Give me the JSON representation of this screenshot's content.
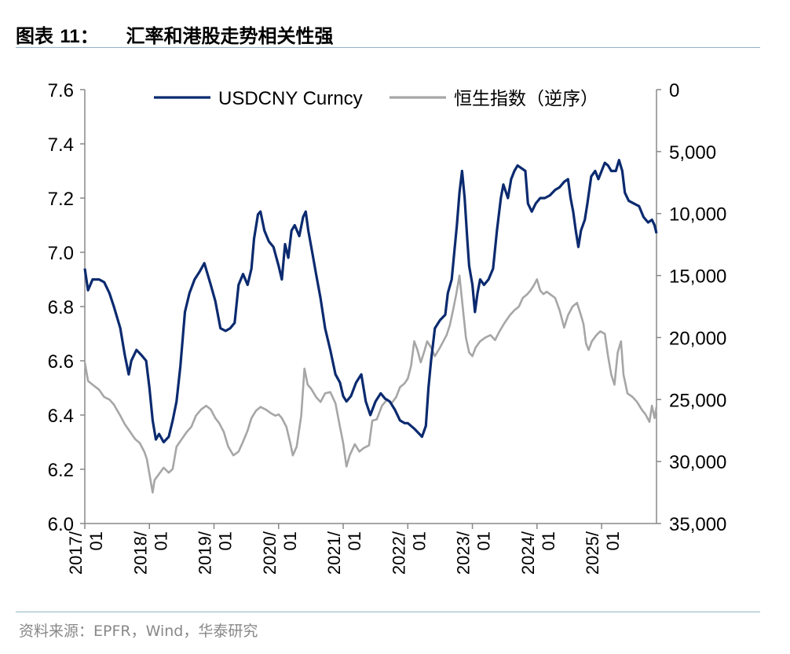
{
  "header": {
    "label": "图表",
    "number": "11",
    "separator": "：",
    "title": "汇率和港股走势相关性强"
  },
  "source": "资料来源：EPFR，Wind，华泰研究",
  "colors": {
    "usdcny": "#0b2a6f",
    "hsi": "#a6a6a6",
    "axis": "#888888",
    "rule": "#8fb3c9"
  },
  "chart_data": {
    "type": "line",
    "title": "汇率和港股走势相关性强",
    "x_tick_labels": [
      "2017/\n01",
      "2018/\n01",
      "2019/\n01",
      "2020/\n01",
      "2021/\n01",
      "2022/\n01",
      "2023/\n01",
      "2024/\n01",
      "2025/\n01"
    ],
    "x_range": [
      2017.0,
      2025.85
    ],
    "left_axis": {
      "range": [
        6.0,
        7.6
      ],
      "ticks": [
        "6.0",
        "6.2",
        "6.4",
        "6.6",
        "6.8",
        "7.0",
        "7.2",
        "7.4",
        "7.6"
      ]
    },
    "right_axis": {
      "range": [
        35000,
        0
      ],
      "inverted": true,
      "ticks": [
        "0",
        "5,000",
        "10,000",
        "15,000",
        "20,000",
        "25,000",
        "30,000",
        "35,000"
      ]
    },
    "legend_position": "top",
    "series": [
      {
        "name": "USDCNY Curncy",
        "axis": "left",
        "points": [
          [
            2017.0,
            6.94
          ],
          [
            2017.05,
            6.86
          ],
          [
            2017.12,
            6.9
          ],
          [
            2017.22,
            6.9
          ],
          [
            2017.3,
            6.89
          ],
          [
            2017.38,
            6.85
          ],
          [
            2017.45,
            6.8
          ],
          [
            2017.55,
            6.72
          ],
          [
            2017.62,
            6.62
          ],
          [
            2017.68,
            6.55
          ],
          [
            2017.72,
            6.6
          ],
          [
            2017.8,
            6.64
          ],
          [
            2017.88,
            6.62
          ],
          [
            2017.95,
            6.6
          ],
          [
            2018.0,
            6.5
          ],
          [
            2018.05,
            6.38
          ],
          [
            2018.1,
            6.31
          ],
          [
            2018.15,
            6.33
          ],
          [
            2018.22,
            6.3
          ],
          [
            2018.3,
            6.32
          ],
          [
            2018.36,
            6.38
          ],
          [
            2018.42,
            6.45
          ],
          [
            2018.48,
            6.58
          ],
          [
            2018.55,
            6.78
          ],
          [
            2018.62,
            6.85
          ],
          [
            2018.7,
            6.9
          ],
          [
            2018.78,
            6.93
          ],
          [
            2018.85,
            6.96
          ],
          [
            2018.95,
            6.88
          ],
          [
            2019.02,
            6.82
          ],
          [
            2019.1,
            6.72
          ],
          [
            2019.18,
            6.71
          ],
          [
            2019.25,
            6.72
          ],
          [
            2019.32,
            6.74
          ],
          [
            2019.38,
            6.88
          ],
          [
            2019.45,
            6.92
          ],
          [
            2019.52,
            6.88
          ],
          [
            2019.58,
            6.94
          ],
          [
            2019.62,
            7.05
          ],
          [
            2019.68,
            7.14
          ],
          [
            2019.72,
            7.15
          ],
          [
            2019.78,
            7.08
          ],
          [
            2019.85,
            7.04
          ],
          [
            2019.92,
            7.02
          ],
          [
            2020.0,
            6.95
          ],
          [
            2020.05,
            6.9
          ],
          [
            2020.1,
            7.03
          ],
          [
            2020.15,
            6.98
          ],
          [
            2020.2,
            7.08
          ],
          [
            2020.25,
            7.1
          ],
          [
            2020.32,
            7.06
          ],
          [
            2020.38,
            7.13
          ],
          [
            2020.42,
            7.15
          ],
          [
            2020.46,
            7.08
          ],
          [
            2020.52,
            7.0
          ],
          [
            2020.58,
            6.92
          ],
          [
            2020.65,
            6.83
          ],
          [
            2020.72,
            6.72
          ],
          [
            2020.8,
            6.64
          ],
          [
            2020.88,
            6.55
          ],
          [
            2020.95,
            6.52
          ],
          [
            2021.0,
            6.47
          ],
          [
            2021.05,
            6.45
          ],
          [
            2021.12,
            6.47
          ],
          [
            2021.2,
            6.52
          ],
          [
            2021.28,
            6.55
          ],
          [
            2021.35,
            6.45
          ],
          [
            2021.42,
            6.4
          ],
          [
            2021.5,
            6.45
          ],
          [
            2021.58,
            6.48
          ],
          [
            2021.65,
            6.46
          ],
          [
            2021.72,
            6.45
          ],
          [
            2021.8,
            6.42
          ],
          [
            2021.88,
            6.38
          ],
          [
            2021.95,
            6.37
          ],
          [
            2022.0,
            6.37
          ],
          [
            2022.1,
            6.35
          ],
          [
            2022.18,
            6.33
          ],
          [
            2022.22,
            6.32
          ],
          [
            2022.28,
            6.36
          ],
          [
            2022.32,
            6.5
          ],
          [
            2022.36,
            6.6
          ],
          [
            2022.42,
            6.72
          ],
          [
            2022.5,
            6.75
          ],
          [
            2022.58,
            6.77
          ],
          [
            2022.62,
            6.85
          ],
          [
            2022.68,
            6.9
          ],
          [
            2022.72,
            7.0
          ],
          [
            2022.76,
            7.1
          ],
          [
            2022.8,
            7.22
          ],
          [
            2022.84,
            7.3
          ],
          [
            2022.88,
            7.2
          ],
          [
            2022.92,
            7.05
          ],
          [
            2022.95,
            6.95
          ],
          [
            2023.0,
            6.88
          ],
          [
            2023.04,
            6.78
          ],
          [
            2023.08,
            6.85
          ],
          [
            2023.12,
            6.9
          ],
          [
            2023.18,
            6.88
          ],
          [
            2023.25,
            6.9
          ],
          [
            2023.32,
            6.94
          ],
          [
            2023.38,
            7.08
          ],
          [
            2023.44,
            7.2
          ],
          [
            2023.48,
            7.25
          ],
          [
            2023.55,
            7.2
          ],
          [
            2023.6,
            7.27
          ],
          [
            2023.65,
            7.3
          ],
          [
            2023.7,
            7.32
          ],
          [
            2023.76,
            7.31
          ],
          [
            2023.82,
            7.3
          ],
          [
            2023.86,
            7.18
          ],
          [
            2023.92,
            7.15
          ],
          [
            2023.98,
            7.18
          ],
          [
            2024.05,
            7.2
          ],
          [
            2024.12,
            7.2
          ],
          [
            2024.2,
            7.21
          ],
          [
            2024.28,
            7.23
          ],
          [
            2024.35,
            7.24
          ],
          [
            2024.42,
            7.26
          ],
          [
            2024.48,
            7.27
          ],
          [
            2024.52,
            7.2
          ],
          [
            2024.56,
            7.15
          ],
          [
            2024.6,
            7.08
          ],
          [
            2024.64,
            7.02
          ],
          [
            2024.68,
            7.08
          ],
          [
            2024.74,
            7.12
          ],
          [
            2024.78,
            7.18
          ],
          [
            2024.84,
            7.28
          ],
          [
            2024.9,
            7.3
          ],
          [
            2024.95,
            7.27
          ],
          [
            2025.0,
            7.3
          ],
          [
            2025.05,
            7.33
          ],
          [
            2025.1,
            7.32
          ],
          [
            2025.15,
            7.3
          ],
          [
            2025.22,
            7.3
          ],
          [
            2025.27,
            7.34
          ],
          [
            2025.32,
            7.3
          ],
          [
            2025.36,
            7.22
          ],
          [
            2025.42,
            7.19
          ],
          [
            2025.5,
            7.18
          ],
          [
            2025.58,
            7.17
          ],
          [
            2025.65,
            7.13
          ],
          [
            2025.72,
            7.11
          ],
          [
            2025.78,
            7.12
          ],
          [
            2025.82,
            7.1
          ],
          [
            2025.85,
            7.07
          ]
        ]
      },
      {
        "name": "恒生指数（逆序）",
        "axis": "right",
        "points": [
          [
            2017.0,
            22000
          ],
          [
            2017.05,
            23500
          ],
          [
            2017.12,
            23800
          ],
          [
            2017.22,
            24200
          ],
          [
            2017.3,
            24800
          ],
          [
            2017.38,
            25000
          ],
          [
            2017.45,
            25400
          ],
          [
            2017.55,
            26300
          ],
          [
            2017.62,
            27000
          ],
          [
            2017.7,
            27600
          ],
          [
            2017.78,
            28200
          ],
          [
            2017.85,
            28500
          ],
          [
            2017.92,
            29200
          ],
          [
            2017.96,
            29800
          ],
          [
            2018.0,
            31000
          ],
          [
            2018.05,
            32500
          ],
          [
            2018.08,
            31500
          ],
          [
            2018.15,
            31000
          ],
          [
            2018.22,
            30500
          ],
          [
            2018.3,
            30900
          ],
          [
            2018.36,
            30600
          ],
          [
            2018.42,
            28800
          ],
          [
            2018.5,
            28200
          ],
          [
            2018.58,
            27600
          ],
          [
            2018.65,
            27200
          ],
          [
            2018.72,
            26300
          ],
          [
            2018.8,
            25800
          ],
          [
            2018.88,
            25500
          ],
          [
            2018.95,
            25800
          ],
          [
            2019.02,
            26500
          ],
          [
            2019.08,
            26900
          ],
          [
            2019.15,
            27600
          ],
          [
            2019.22,
            28800
          ],
          [
            2019.3,
            29500
          ],
          [
            2019.38,
            29200
          ],
          [
            2019.45,
            28400
          ],
          [
            2019.52,
            27500
          ],
          [
            2019.58,
            26500
          ],
          [
            2019.65,
            25900
          ],
          [
            2019.72,
            25600
          ],
          [
            2019.8,
            25800
          ],
          [
            2019.88,
            26100
          ],
          [
            2019.95,
            26300
          ],
          [
            2020.0,
            26200
          ],
          [
            2020.05,
            26500
          ],
          [
            2020.12,
            27200
          ],
          [
            2020.18,
            28500
          ],
          [
            2020.22,
            29500
          ],
          [
            2020.28,
            28800
          ],
          [
            2020.35,
            26300
          ],
          [
            2020.4,
            22500
          ],
          [
            2020.45,
            23800
          ],
          [
            2020.5,
            24100
          ],
          [
            2020.58,
            24800
          ],
          [
            2020.65,
            25200
          ],
          [
            2020.72,
            24500
          ],
          [
            2020.8,
            24400
          ],
          [
            2020.88,
            25300
          ],
          [
            2020.95,
            27200
          ],
          [
            2021.0,
            28500
          ],
          [
            2021.05,
            30400
          ],
          [
            2021.1,
            29500
          ],
          [
            2021.18,
            28600
          ],
          [
            2021.25,
            29200
          ],
          [
            2021.32,
            28900
          ],
          [
            2021.4,
            28700
          ],
          [
            2021.45,
            26700
          ],
          [
            2021.52,
            26600
          ],
          [
            2021.6,
            25500
          ],
          [
            2021.68,
            25000
          ],
          [
            2021.75,
            25300
          ],
          [
            2021.82,
            24800
          ],
          [
            2021.88,
            24000
          ],
          [
            2021.95,
            23700
          ],
          [
            2022.0,
            23300
          ],
          [
            2022.05,
            22300
          ],
          [
            2022.1,
            20300
          ],
          [
            2022.15,
            21000
          ],
          [
            2022.2,
            22000
          ],
          [
            2022.25,
            21200
          ],
          [
            2022.3,
            20300
          ],
          [
            2022.36,
            20800
          ],
          [
            2022.42,
            21500
          ],
          [
            2022.5,
            20800
          ],
          [
            2022.55,
            20300
          ],
          [
            2022.6,
            19800
          ],
          [
            2022.65,
            19000
          ],
          [
            2022.7,
            17800
          ],
          [
            2022.75,
            16500
          ],
          [
            2022.8,
            15000
          ],
          [
            2022.85,
            17500
          ],
          [
            2022.9,
            20000
          ],
          [
            2022.95,
            21200
          ],
          [
            2023.0,
            21500
          ],
          [
            2023.05,
            20800
          ],
          [
            2023.12,
            20300
          ],
          [
            2023.2,
            20000
          ],
          [
            2023.28,
            19800
          ],
          [
            2023.35,
            20200
          ],
          [
            2023.42,
            19500
          ],
          [
            2023.5,
            18800
          ],
          [
            2023.58,
            18200
          ],
          [
            2023.65,
            17800
          ],
          [
            2023.72,
            17500
          ],
          [
            2023.78,
            16800
          ],
          [
            2023.85,
            16500
          ],
          [
            2023.9,
            16200
          ],
          [
            2023.95,
            15800
          ],
          [
            2024.0,
            15300
          ],
          [
            2024.05,
            16200
          ],
          [
            2024.1,
            16500
          ],
          [
            2024.15,
            16300
          ],
          [
            2024.2,
            16500
          ],
          [
            2024.28,
            16800
          ],
          [
            2024.35,
            17800
          ],
          [
            2024.42,
            19200
          ],
          [
            2024.48,
            18200
          ],
          [
            2024.55,
            17500
          ],
          [
            2024.62,
            17200
          ],
          [
            2024.68,
            18200
          ],
          [
            2024.72,
            18900
          ],
          [
            2024.76,
            20500
          ],
          [
            2024.8,
            21000
          ],
          [
            2024.85,
            20300
          ],
          [
            2024.92,
            19800
          ],
          [
            2024.98,
            19500
          ],
          [
            2025.05,
            19700
          ],
          [
            2025.1,
            21500
          ],
          [
            2025.15,
            23000
          ],
          [
            2025.2,
            23800
          ],
          [
            2025.25,
            21200
          ],
          [
            2025.3,
            20300
          ],
          [
            2025.34,
            23000
          ],
          [
            2025.4,
            24500
          ],
          [
            2025.48,
            24800
          ],
          [
            2025.55,
            25200
          ],
          [
            2025.62,
            25800
          ],
          [
            2025.68,
            26200
          ],
          [
            2025.74,
            26800
          ],
          [
            2025.78,
            25500
          ],
          [
            2025.82,
            26500
          ],
          [
            2025.85,
            25600
          ]
        ]
      }
    ]
  }
}
